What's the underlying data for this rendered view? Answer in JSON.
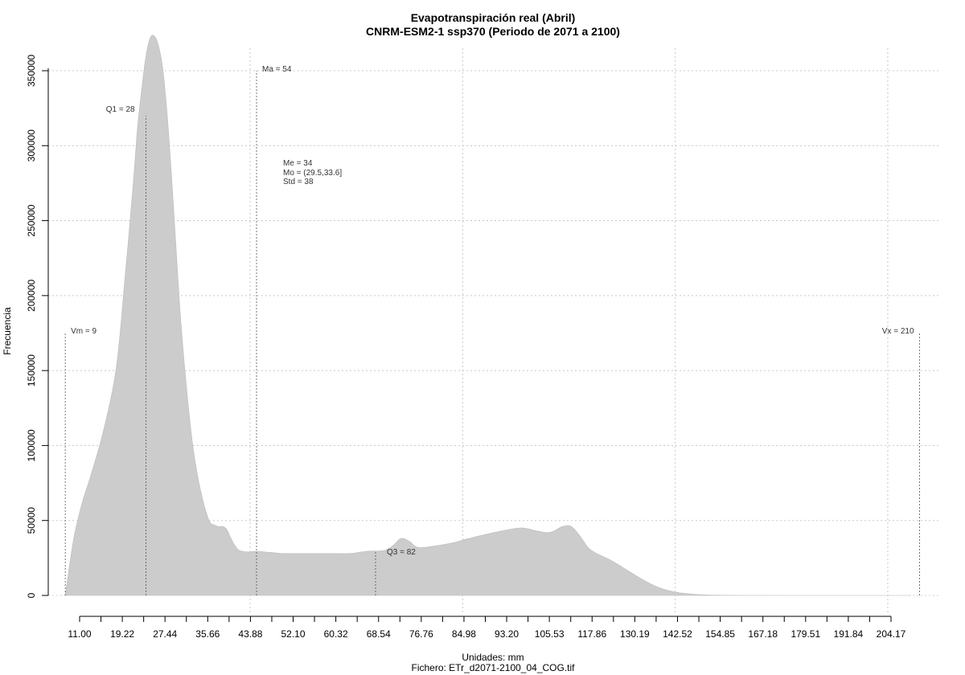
{
  "chart_data": {
    "type": "area",
    "title": "Evapotranspiración real (Abril)",
    "subtitle": "CNRM-ESM2-1 ssp370 (Periodo de 2071 a 2100)",
    "xlabel": "Unidades: mm",
    "ylabel": "Frecuencia",
    "footer": "Fichero: ETr_d2071-2100_04_COG.tif",
    "xlim": [
      5,
      215
    ],
    "ylim": [
      0,
      365000
    ],
    "x_ticks": [
      "11.00",
      "19.22",
      "27.44",
      "35.66",
      "43.88",
      "52.10",
      "60.32",
      "68.54",
      "76.76",
      "84.98",
      "93.20",
      "105.53",
      "117.86",
      "130.19",
      "142.52",
      "154.85",
      "167.18",
      "179.51",
      "191.84",
      "204.17"
    ],
    "y_ticks": [
      "0",
      "50000",
      "100000",
      "150000",
      "200000",
      "250000",
      "300000",
      "350000"
    ],
    "grid": true,
    "fill_color": "#cccccc",
    "series": [
      {
        "x": [
          9,
          11,
          13,
          15,
          18,
          21,
          23,
          25,
          26,
          27,
          28,
          29,
          30,
          31,
          32,
          33,
          34,
          35,
          36,
          37,
          38,
          39,
          40,
          41,
          42,
          43,
          44,
          45,
          46,
          47,
          48,
          49,
          50,
          52,
          54,
          56,
          58,
          60,
          64,
          68,
          72,
          76,
          80,
          84,
          86,
          88,
          90,
          92,
          96,
          100,
          104,
          110,
          116,
          120,
          123,
          126,
          128,
          130,
          132,
          134,
          137,
          140,
          144,
          148,
          152,
          156,
          160,
          170,
          180,
          190,
          200,
          208
        ],
        "y": [
          0,
          38000,
          62000,
          80000,
          110000,
          152000,
          210000,
          275000,
          312000,
          338000,
          360000,
          372000,
          373000,
          366000,
          350000,
          320000,
          280000,
          235000,
          190000,
          155000,
          125000,
          100000,
          82000,
          68000,
          57000,
          49000,
          47000,
          46000,
          46000,
          44000,
          38000,
          33000,
          30000,
          29000,
          29500,
          29000,
          28500,
          28000,
          28000,
          28000,
          28000,
          28000,
          29500,
          30000,
          33000,
          38000,
          36000,
          32000,
          33000,
          35000,
          38000,
          42000,
          45000,
          43000,
          42000,
          46000,
          46000,
          40000,
          32000,
          28000,
          24000,
          19000,
          12000,
          6000,
          2500,
          1000,
          300,
          50,
          0,
          0,
          0,
          0
        ]
      }
    ],
    "vlines": [
      {
        "x": 9,
        "label": "Vm = 9"
      },
      {
        "x": 28,
        "label": "Q1 = 28"
      },
      {
        "x": 54,
        "label": "Ma = 54"
      },
      {
        "x": 82,
        "label": "Q3 = 82"
      },
      {
        "x": 210,
        "label": "Vx = 210"
      }
    ],
    "stats": [
      "Me = 34",
      "Mo = (29.5,33.6]",
      "Std = 38"
    ]
  }
}
